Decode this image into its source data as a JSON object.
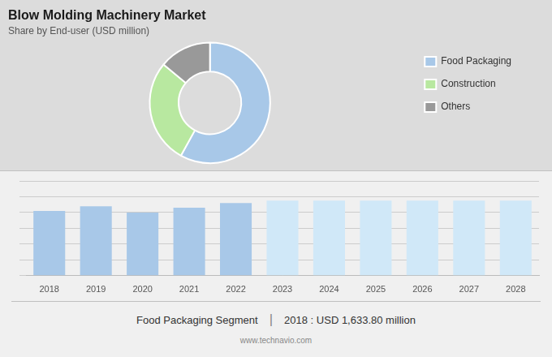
{
  "chart_data": [
    {
      "type": "donut",
      "title": "Blow Molding Machinery Market",
      "subtitle": "Share by End-user (USD million)",
      "categories": [
        "Food Packaging",
        "Construction",
        "Others"
      ],
      "values": [
        58,
        28,
        14
      ],
      "colors": [
        "#a8c8e8",
        "#b8e8a0",
        "#999999"
      ],
      "legend": "right"
    },
    {
      "type": "bar",
      "categories": [
        "2018",
        "2019",
        "2020",
        "2021",
        "2022",
        "2023",
        "2024",
        "2025",
        "2026",
        "2027",
        "2028"
      ],
      "values": [
        82,
        88,
        80,
        86,
        92,
        95,
        95,
        95,
        95,
        95,
        95
      ],
      "colors": [
        "#a8c8e8",
        "#a8c8e8",
        "#a8c8e8",
        "#a8c8e8",
        "#a8c8e8",
        "#d0e8f8",
        "#d0e8f8",
        "#d0e8f8",
        "#d0e8f8",
        "#d0e8f8",
        "#d0e8f8"
      ],
      "ylim": [
        0,
        120
      ],
      "yticks": [
        0,
        20,
        40,
        60,
        80,
        100,
        120
      ],
      "grid": true,
      "tick_labels": "x",
      "annotations": [
        "Food Packaging Segment",
        "|",
        "2018 : USD 1,633.80 million",
        "www.technavio.com"
      ]
    }
  ]
}
